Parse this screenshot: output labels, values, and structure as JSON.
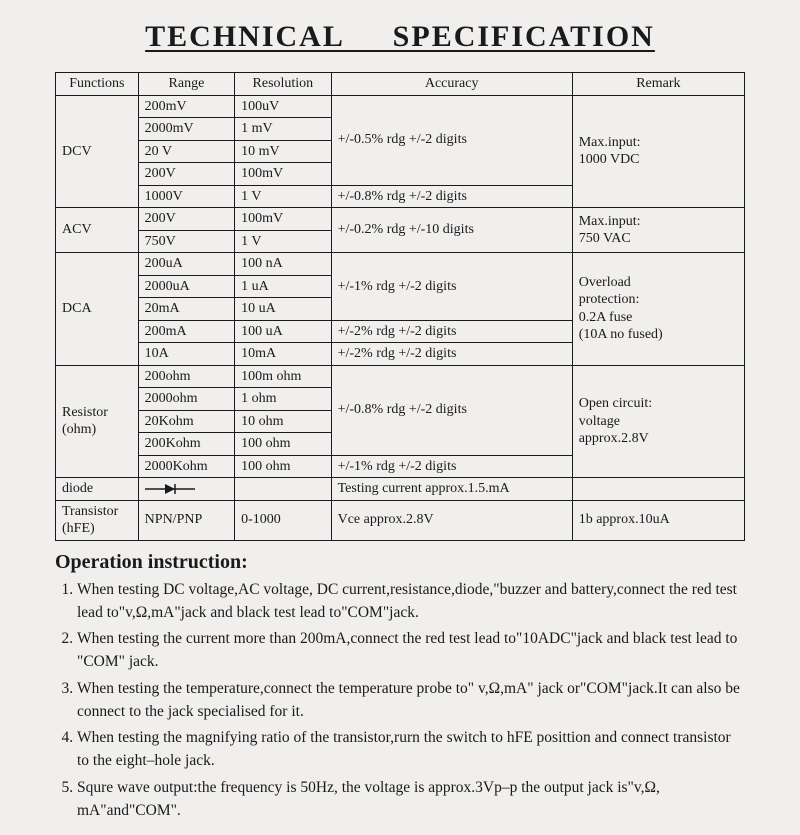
{
  "title": "TECHNICAL SPECIFICATION",
  "columns": [
    "Functions",
    "Range",
    "Resolution",
    "Accuracy",
    "Remark"
  ],
  "groups": [
    {
      "func": "DCV",
      "remark": "Max.input:\n1000 VDC",
      "rows": [
        {
          "range": "200mV",
          "res": "100uV",
          "acc": "",
          "acc_span": 4,
          "acc_text": "+/-0.5% rdg +/-2 digits"
        },
        {
          "range": "2000mV",
          "res": "1 mV"
        },
        {
          "range": "20 V",
          "res": "10 mV"
        },
        {
          "range": "200V",
          "res": "100mV"
        },
        {
          "range": "1000V",
          "res": "1 V",
          "acc_text": "+/-0.8% rdg +/-2 digits",
          "acc_span": 1
        }
      ]
    },
    {
      "func": "ACV",
      "remark": "Max.input:\n750 VAC",
      "rows": [
        {
          "range": "200V",
          "res": "100mV",
          "acc_text": "+/-0.2% rdg +/-10 digits",
          "acc_span": 2
        },
        {
          "range": "750V",
          "res": "1 V"
        }
      ]
    },
    {
      "func": "DCA",
      "remark": "Overload\nprotection:\n0.2A fuse\n(10A no fused)",
      "rows": [
        {
          "range": "200uA",
          "res": "100 nA",
          "acc_text": "+/-1% rdg +/-2 digits",
          "acc_span": 3
        },
        {
          "range": "2000uA",
          "res": "1 uA"
        },
        {
          "range": "20mA",
          "res": "10 uA"
        },
        {
          "range": "200mA",
          "res": "100 uA",
          "acc_text": "+/-2% rdg +/-2 digits",
          "acc_span": 1
        },
        {
          "range": "10A",
          "res": "10mA",
          "acc_text": "+/-2% rdg +/-2 digits",
          "acc_span": 1
        }
      ]
    },
    {
      "func": "Resistor\n(ohm)",
      "remark": "Open circuit:\nvoltage\napprox.2.8V",
      "rows": [
        {
          "range": "200ohm",
          "res": "100m ohm",
          "acc_text": "+/-0.8% rdg +/-2 digits",
          "acc_span": 4
        },
        {
          "range": "2000ohm",
          "res": "1 ohm"
        },
        {
          "range": "20Kohm",
          "res": "10 ohm"
        },
        {
          "range": "200Kohm",
          "res": "100 ohm"
        },
        {
          "range": "2000Kohm",
          "res": "100 ohm",
          "acc_text": "+/-1% rdg +/-2 digits",
          "acc_span": 1
        }
      ]
    }
  ],
  "single_rows": [
    {
      "func": "diode",
      "range": "__DIODE__",
      "res": "",
      "acc": "Testing current approx.1.5.mA",
      "rem": ""
    },
    {
      "func": "Transistor\n(hFE)",
      "range": "NPN/PNP",
      "res": "0-1000",
      "acc": "Vce approx.2.8V",
      "rem": "1b approx.10uA"
    }
  ],
  "op_heading": "Operation instruction:",
  "op_items": [
    "When testing DC voltage,AC voltage, DC current,resistance,diode,\"buzzer and battery,connect the red test lead to\"v,Ω,mA\"jack and black test lead to\"COM\"jack.",
    "When testing the current more than 200mA,connect the red test lead to\"10ADC\"jack and black test lead to \"COM\" jack.",
    "When testing the temperature,connect the temperature probe to\" v,Ω,mA\" jack or\"COM\"jack.It can also be connect to the jack specialised for it.",
    "When testing the magnifying ratio of the transistor,rurn the switch to hFE posittion and connect transistor to the eight–hole jack.",
    "Squre wave output:the frequency is 50Hz, the voltage is approx.3Vp–p the output jack is\"v,Ω, mA\"and\"COM\"."
  ],
  "style": {
    "bg": "#f0efed",
    "ink": "#1a1a1a",
    "title_fontsize": 30,
    "body_fontsize": 14,
    "op_fontsize": 15.5,
    "font_family": "Times New Roman"
  }
}
